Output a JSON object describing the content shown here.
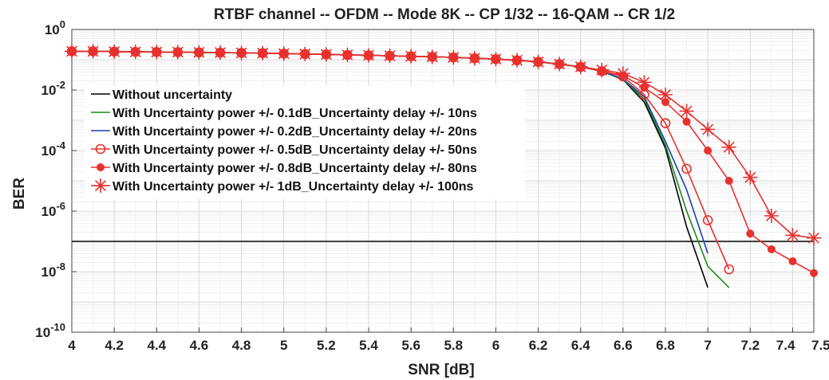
{
  "chart_data": {
    "type": "line",
    "title": "RTBF channel -- OFDM -- Mode 8K -- CP 1/32 -- 16-QAM -- CR 1/2",
    "xlabel": "SNR [dB]",
    "ylabel": "BER",
    "xlim": [
      4,
      7.5
    ],
    "ylim": [
      1e-10,
      1
    ],
    "yscale": "log",
    "grid": true,
    "legend_position": "left",
    "x_ticks": [
      4,
      4.2,
      4.4,
      4.6,
      4.8,
      5,
      5.2,
      5.4,
      5.6,
      5.8,
      6,
      6.2,
      6.4,
      6.6,
      6.8,
      7,
      7.2,
      7.4,
      7.5
    ],
    "x_tick_labels": [
      "4",
      "4.2",
      "4.4",
      "4.6",
      "4.8",
      "5",
      "5.2",
      "5.4",
      "5.6",
      "5.8",
      "6",
      "6.2",
      "6.4",
      "6.6",
      "6.8",
      "7",
      "7.2",
      "7.4",
      "7.5"
    ],
    "y_tick_labels": [
      {
        "base": "10",
        "exp": "0",
        "value": 1
      },
      {
        "base": "10",
        "exp": "-2",
        "value": 0.01
      },
      {
        "base": "10",
        "exp": "-4",
        "value": 0.0001
      },
      {
        "base": "10",
        "exp": "-6",
        "value": 1e-06
      },
      {
        "base": "10",
        "exp": "-8",
        "value": 1e-08
      },
      {
        "base": "10",
        "exp": "-10",
        "value": 1e-10
      }
    ],
    "reference_line": {
      "y": 1e-07,
      "color": "#000000"
    },
    "series": [
      {
        "name": "Without uncertainty",
        "color": "#000000",
        "marker": "none",
        "x": [
          4,
          4.1,
          4.2,
          4.3,
          4.4,
          4.5,
          4.6,
          4.7,
          4.8,
          4.9,
          5,
          5.1,
          5.2,
          5.3,
          5.4,
          5.5,
          5.6,
          5.7,
          5.8,
          5.9,
          6,
          6.1,
          6.2,
          6.3,
          6.4,
          6.5,
          6.6,
          6.7,
          6.8,
          6.9,
          7
        ],
        "y": [
          0.19,
          0.19,
          0.185,
          0.182,
          0.18,
          0.178,
          0.175,
          0.172,
          0.168,
          0.165,
          0.16,
          0.155,
          0.15,
          0.145,
          0.14,
          0.135,
          0.13,
          0.125,
          0.12,
          0.112,
          0.105,
          0.096,
          0.085,
          0.072,
          0.058,
          0.042,
          0.022,
          0.004,
          0.00012,
          3e-07,
          3e-09
        ]
      },
      {
        "name": "With Uncertainty power +/- 0.1dB_Uncertainty delay +/- 10ns",
        "color": "#1a8a1a",
        "marker": "none",
        "x": [
          4,
          4.1,
          4.2,
          4.3,
          4.4,
          4.5,
          4.6,
          4.7,
          4.8,
          4.9,
          5,
          5.1,
          5.2,
          5.3,
          5.4,
          5.5,
          5.6,
          5.7,
          5.8,
          5.9,
          6,
          6.1,
          6.2,
          6.3,
          6.4,
          6.5,
          6.6,
          6.7,
          6.8,
          6.9,
          7,
          7.1
        ],
        "y": [
          0.19,
          0.19,
          0.185,
          0.182,
          0.18,
          0.178,
          0.175,
          0.172,
          0.168,
          0.165,
          0.16,
          0.155,
          0.15,
          0.145,
          0.14,
          0.135,
          0.13,
          0.125,
          0.12,
          0.112,
          0.105,
          0.096,
          0.085,
          0.072,
          0.058,
          0.042,
          0.022,
          0.005,
          0.00015,
          1e-06,
          1.5e-08,
          3e-09
        ]
      },
      {
        "name": "With Uncertainty power +/- 0.2dB_Uncertainty delay +/- 20ns",
        "color": "#1c3fb0",
        "marker": "none",
        "x": [
          4,
          4.1,
          4.2,
          4.3,
          4.4,
          4.5,
          4.6,
          4.7,
          4.8,
          4.9,
          5,
          5.1,
          5.2,
          5.3,
          5.4,
          5.5,
          5.6,
          5.7,
          5.8,
          5.9,
          6,
          6.1,
          6.2,
          6.3,
          6.4,
          6.5,
          6.6,
          6.7,
          6.8,
          6.9,
          7
        ],
        "y": [
          0.19,
          0.19,
          0.185,
          0.182,
          0.18,
          0.178,
          0.175,
          0.172,
          0.168,
          0.165,
          0.16,
          0.155,
          0.15,
          0.145,
          0.14,
          0.135,
          0.13,
          0.125,
          0.12,
          0.112,
          0.105,
          0.096,
          0.085,
          0.072,
          0.058,
          0.042,
          0.023,
          0.006,
          0.0002,
          5e-06,
          4e-08
        ]
      },
      {
        "name": "With Uncertainty power +/- 0.5dB_Uncertainty delay +/- 50ns",
        "color": "#e8312f",
        "marker": "circle-open",
        "x": [
          4,
          4.1,
          4.2,
          4.3,
          4.4,
          4.5,
          4.6,
          4.7,
          4.8,
          4.9,
          5,
          5.1,
          5.2,
          5.3,
          5.4,
          5.5,
          5.6,
          5.7,
          5.8,
          5.9,
          6,
          6.1,
          6.2,
          6.3,
          6.4,
          6.5,
          6.6,
          6.7,
          6.8,
          6.9,
          7,
          7.1
        ],
        "y": [
          0.19,
          0.19,
          0.185,
          0.182,
          0.18,
          0.178,
          0.175,
          0.172,
          0.168,
          0.165,
          0.16,
          0.155,
          0.15,
          0.145,
          0.14,
          0.135,
          0.13,
          0.125,
          0.12,
          0.112,
          0.105,
          0.096,
          0.085,
          0.072,
          0.058,
          0.042,
          0.028,
          0.007,
          0.0008,
          2.5e-05,
          5e-07,
          1.2e-08
        ]
      },
      {
        "name": "With Uncertainty power +/- 0.8dB_Uncertainty delay +/- 80ns",
        "color": "#e8312f",
        "marker": "circle-filled",
        "x": [
          4,
          4.1,
          4.2,
          4.3,
          4.4,
          4.5,
          4.6,
          4.7,
          4.8,
          4.9,
          5,
          5.1,
          5.2,
          5.3,
          5.4,
          5.5,
          5.6,
          5.7,
          5.8,
          5.9,
          6,
          6.1,
          6.2,
          6.3,
          6.4,
          6.5,
          6.6,
          6.7,
          6.8,
          6.9,
          7,
          7.1,
          7.2,
          7.3,
          7.4,
          7.5
        ],
        "y": [
          0.19,
          0.19,
          0.185,
          0.182,
          0.18,
          0.178,
          0.175,
          0.172,
          0.168,
          0.165,
          0.16,
          0.155,
          0.15,
          0.145,
          0.14,
          0.135,
          0.13,
          0.125,
          0.12,
          0.112,
          0.105,
          0.096,
          0.085,
          0.072,
          0.058,
          0.042,
          0.03,
          0.012,
          0.004,
          0.0009,
          0.0001,
          1e-05,
          1.8e-07,
          5.5e-08,
          2.2e-08,
          9e-09
        ]
      },
      {
        "name": "With Uncertainty power +/- 1dB_Uncertainty delay +/- 100ns",
        "color": "#e8312f",
        "marker": "asterisk",
        "x": [
          4,
          4.1,
          4.2,
          4.3,
          4.4,
          4.5,
          4.6,
          4.7,
          4.8,
          4.9,
          5,
          5.1,
          5.2,
          5.3,
          5.4,
          5.5,
          5.6,
          5.7,
          5.8,
          5.9,
          6,
          6.1,
          6.2,
          6.3,
          6.4,
          6.5,
          6.6,
          6.7,
          6.8,
          6.9,
          7,
          7.1,
          7.2,
          7.3,
          7.4,
          7.5
        ],
        "y": [
          0.19,
          0.19,
          0.185,
          0.182,
          0.18,
          0.178,
          0.175,
          0.172,
          0.168,
          0.165,
          0.16,
          0.155,
          0.15,
          0.145,
          0.14,
          0.135,
          0.13,
          0.125,
          0.12,
          0.112,
          0.105,
          0.096,
          0.085,
          0.072,
          0.058,
          0.046,
          0.035,
          0.018,
          0.007,
          0.002,
          0.0005,
          0.00013,
          1.3e-05,
          7e-07,
          1.6e-07,
          1.3e-07
        ]
      }
    ]
  }
}
